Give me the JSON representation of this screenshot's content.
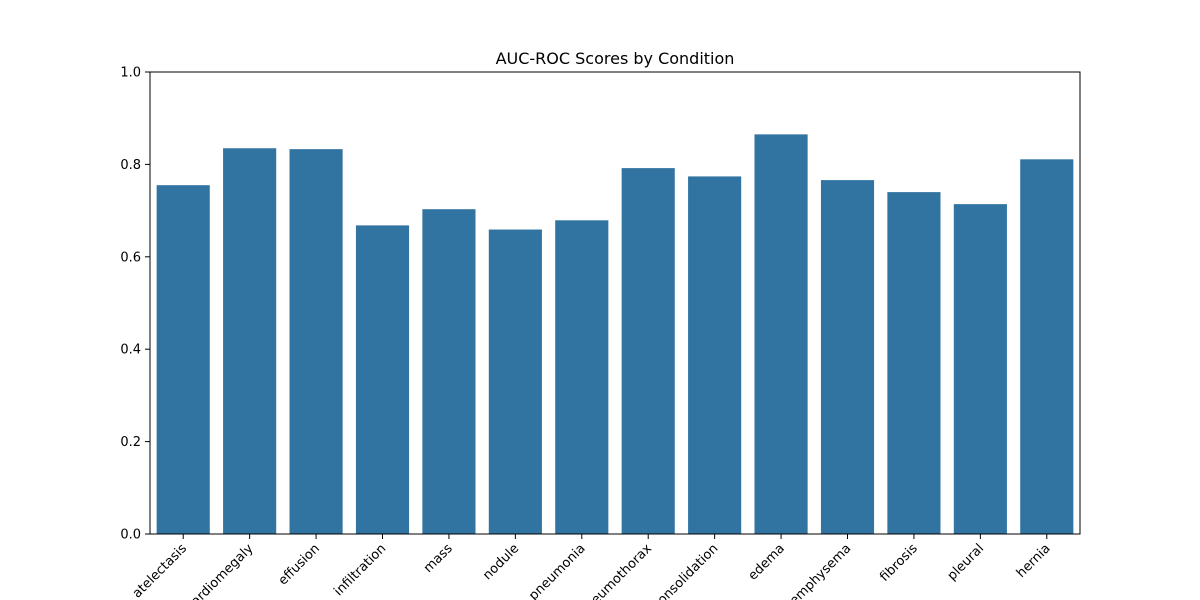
{
  "chart_data": {
    "type": "bar",
    "title": "AUC-ROC Scores by Condition",
    "xlabel": "",
    "ylabel": "",
    "categories": [
      "atelectasis",
      "cardiomegaly",
      "effusion",
      "infiltration",
      "mass",
      "nodule",
      "pneumonia",
      "pneumothorax",
      "consolidation",
      "edema",
      "emphysema",
      "fibrosis",
      "pleural",
      "hernia"
    ],
    "values": [
      0.755,
      0.835,
      0.833,
      0.668,
      0.703,
      0.659,
      0.679,
      0.792,
      0.774,
      0.865,
      0.766,
      0.74,
      0.714,
      0.811
    ],
    "ylim": [
      0,
      1.0
    ],
    "yticks": [
      "0.0",
      "0.2",
      "0.4",
      "0.6",
      "0.8",
      "1.0"
    ],
    "bar_color": "#3274a1",
    "grid": false,
    "legend": "none"
  }
}
